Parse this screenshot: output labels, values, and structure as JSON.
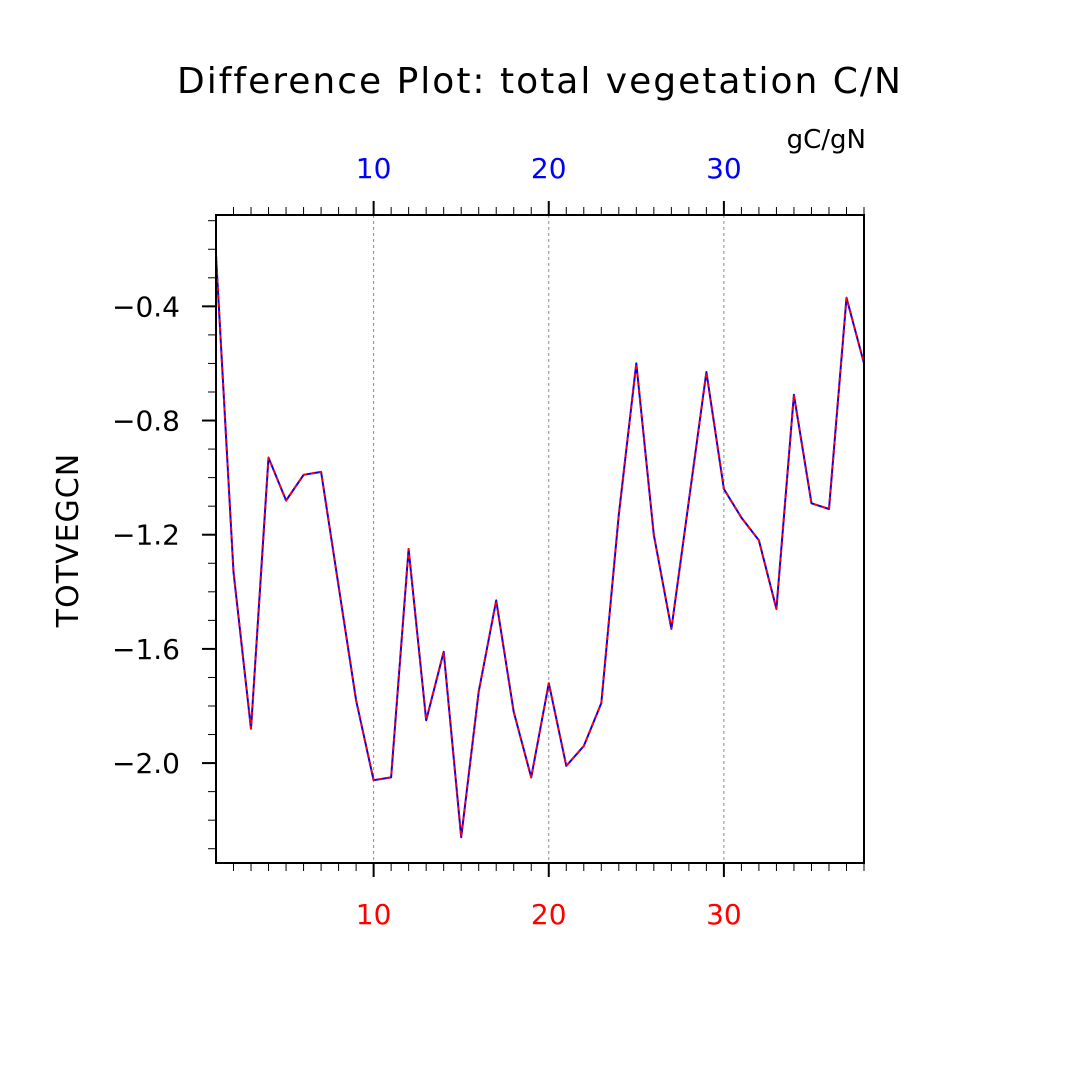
{
  "chart_data": {
    "type": "line",
    "title": "Difference Plot: total vegetation C/N",
    "units": "gC/gN",
    "ylabel": "TOTVEGCN",
    "xlabel": "",
    "xlim": [
      1,
      38
    ],
    "ylim": [
      -2.35,
      -0.08
    ],
    "x_ticks": [
      10,
      20,
      30
    ],
    "x_tick_labels": [
      "10",
      "20",
      "30"
    ],
    "y_ticks": [
      -0.4,
      -0.8,
      -1.2,
      -1.6,
      -2.0
    ],
    "y_tick_labels": [
      "−0.4",
      "−0.8",
      "−1.2",
      "−1.6",
      "−2.0"
    ],
    "grid": "vertical dashed at major x ticks",
    "bottom_axis_color": "#ff0000",
    "top_axis_color": "#0000ff",
    "series": [
      {
        "color": "#0000ff",
        "style": "solid",
        "x": [
          1,
          2,
          3,
          4,
          5,
          6,
          7,
          8,
          9,
          10,
          11,
          12,
          13,
          14,
          15,
          16,
          17,
          18,
          19,
          20,
          21,
          22,
          23,
          24,
          25,
          26,
          27,
          28,
          29,
          30,
          31,
          32,
          33,
          34,
          35,
          36,
          37,
          38
        ],
        "values": [
          -0.22,
          -1.33,
          -1.88,
          -0.93,
          -1.08,
          -0.99,
          -0.98,
          -1.38,
          -1.78,
          -2.06,
          -2.05,
          -1.25,
          -1.85,
          -1.61,
          -2.26,
          -1.75,
          -1.43,
          -1.82,
          -2.05,
          -1.72,
          -2.01,
          -1.94,
          -1.79,
          -1.13,
          -0.6,
          -1.2,
          -1.53,
          -1.08,
          -0.63,
          -1.04,
          -1.14,
          -1.22,
          -1.46,
          -0.71,
          -1.09,
          -1.11,
          -0.37,
          -0.6
        ]
      },
      {
        "color": "#ff0000",
        "style": "dashed",
        "x": [
          1,
          2,
          3,
          4,
          5,
          6,
          7,
          8,
          9,
          10,
          11,
          12,
          13,
          14,
          15,
          16,
          17,
          18,
          19,
          20,
          21,
          22,
          23,
          24,
          25,
          26,
          27,
          28,
          29,
          30,
          31,
          32,
          33,
          34,
          35,
          36,
          37,
          38
        ],
        "values": [
          -0.22,
          -1.33,
          -1.88,
          -0.93,
          -1.08,
          -0.99,
          -0.98,
          -1.38,
          -1.78,
          -2.06,
          -2.05,
          -1.25,
          -1.85,
          -1.61,
          -2.26,
          -1.75,
          -1.43,
          -1.82,
          -2.05,
          -1.72,
          -2.01,
          -1.94,
          -1.79,
          -1.13,
          -0.6,
          -1.2,
          -1.53,
          -1.08,
          -0.63,
          -1.04,
          -1.14,
          -1.22,
          -1.46,
          -0.71,
          -1.09,
          -1.11,
          -0.37,
          -0.6
        ]
      }
    ]
  }
}
